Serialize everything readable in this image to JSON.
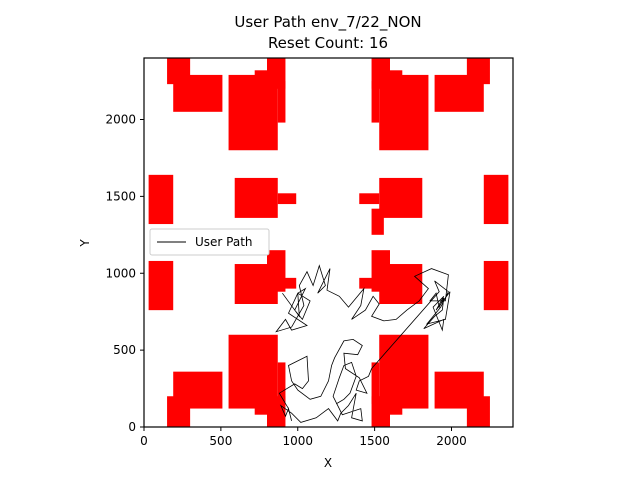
{
  "chart_data": {
    "type": "line",
    "title": "User Path env_7/22_NON",
    "subtitle": "Reset Count: 16",
    "xlabel": "X",
    "ylabel": "Y",
    "xlim": [
      0,
      2400
    ],
    "ylim": [
      0,
      2400
    ],
    "xticks": [
      0,
      500,
      1000,
      1500,
      2000
    ],
    "yticks": [
      0,
      500,
      1000,
      1500,
      2000
    ],
    "grid": false,
    "legend": {
      "placement": "center-left",
      "entries": [
        "User Path"
      ]
    },
    "colors": {
      "obstacle": "#ff0000",
      "path": "#000000"
    },
    "obstacles": [
      {
        "x0": 150,
        "y0": 2230,
        "x1": 300,
        "y1": 2400
      },
      {
        "x0": 190,
        "y0": 2050,
        "x1": 510,
        "y1": 2290
      },
      {
        "x0": 550,
        "y0": 1800,
        "x1": 870,
        "y1": 2290
      },
      {
        "x0": 720,
        "y0": 2200,
        "x1": 870,
        "y1": 2320
      },
      {
        "x0": 800,
        "y0": 2200,
        "x1": 920,
        "y1": 2400
      },
      {
        "x0": 870,
        "y0": 1980,
        "x1": 920,
        "y1": 2250
      },
      {
        "x0": 1480,
        "y0": 2200,
        "x1": 1600,
        "y1": 2400
      },
      {
        "x0": 1480,
        "y0": 1980,
        "x1": 1530,
        "y1": 2250
      },
      {
        "x0": 1530,
        "y0": 1800,
        "x1": 1850,
        "y1": 2290
      },
      {
        "x0": 1530,
        "y0": 2200,
        "x1": 1680,
        "y1": 2320
      },
      {
        "x0": 1890,
        "y0": 2050,
        "x1": 2210,
        "y1": 2290
      },
      {
        "x0": 2100,
        "y0": 2230,
        "x1": 2250,
        "y1": 2400
      },
      {
        "x0": 30,
        "y0": 1320,
        "x1": 190,
        "y1": 1640
      },
      {
        "x0": 590,
        "y0": 1360,
        "x1": 870,
        "y1": 1620
      },
      {
        "x0": 870,
        "y0": 1450,
        "x1": 990,
        "y1": 1520
      },
      {
        "x0": 1400,
        "y0": 1450,
        "x1": 1530,
        "y1": 1520
      },
      {
        "x0": 1480,
        "y0": 1250,
        "x1": 1560,
        "y1": 1420
      },
      {
        "x0": 1530,
        "y0": 1360,
        "x1": 1810,
        "y1": 1620
      },
      {
        "x0": 2210,
        "y0": 1320,
        "x1": 2370,
        "y1": 1640
      },
      {
        "x0": 30,
        "y0": 760,
        "x1": 190,
        "y1": 1080
      },
      {
        "x0": 590,
        "y0": 800,
        "x1": 870,
        "y1": 1060
      },
      {
        "x0": 800,
        "y0": 880,
        "x1": 920,
        "y1": 1150
      },
      {
        "x0": 870,
        "y0": 900,
        "x1": 990,
        "y1": 970
      },
      {
        "x0": 1400,
        "y0": 900,
        "x1": 1530,
        "y1": 970
      },
      {
        "x0": 1480,
        "y0": 880,
        "x1": 1600,
        "y1": 1150
      },
      {
        "x0": 1530,
        "y0": 800,
        "x1": 1810,
        "y1": 1060
      },
      {
        "x0": 2210,
        "y0": 760,
        "x1": 2370,
        "y1": 1080
      },
      {
        "x0": 550,
        "y0": 120,
        "x1": 870,
        "y1": 600
      },
      {
        "x0": 720,
        "y0": 80,
        "x1": 870,
        "y1": 200
      },
      {
        "x0": 800,
        "y0": 0,
        "x1": 920,
        "y1": 200
      },
      {
        "x0": 870,
        "y0": 150,
        "x1": 920,
        "y1": 420
      },
      {
        "x0": 190,
        "y0": 120,
        "x1": 510,
        "y1": 360
      },
      {
        "x0": 150,
        "y0": 0,
        "x1": 300,
        "y1": 200
      },
      {
        "x0": 1530,
        "y0": 120,
        "x1": 1850,
        "y1": 600
      },
      {
        "x0": 1530,
        "y0": 80,
        "x1": 1680,
        "y1": 200
      },
      {
        "x0": 1480,
        "y0": 0,
        "x1": 1600,
        "y1": 200
      },
      {
        "x0": 1480,
        "y0": 150,
        "x1": 1530,
        "y1": 420
      },
      {
        "x0": 1890,
        "y0": 120,
        "x1": 2210,
        "y1": 360
      },
      {
        "x0": 2100,
        "y0": 0,
        "x1": 2250,
        "y1": 200
      }
    ],
    "series": [
      {
        "name": "User Path",
        "points": [
          [
            900,
            870
          ],
          [
            1010,
            720
          ],
          [
            1000,
            870
          ],
          [
            1050,
            900
          ],
          [
            980,
            760
          ],
          [
            1030,
            700
          ],
          [
            1080,
            820
          ],
          [
            1000,
            870
          ],
          [
            940,
            740
          ],
          [
            1060,
            660
          ],
          [
            960,
            630
          ],
          [
            920,
            700
          ],
          [
            860,
            620
          ],
          [
            960,
            650
          ],
          [
            1040,
            790
          ],
          [
            1010,
            920
          ],
          [
            1060,
            1010
          ],
          [
            1100,
            920
          ],
          [
            1140,
            1050
          ],
          [
            1180,
            920
          ],
          [
            1130,
            870
          ],
          [
            1210,
            1030
          ],
          [
            1190,
            890
          ],
          [
            1270,
            850
          ],
          [
            1330,
            780
          ],
          [
            1380,
            840
          ],
          [
            1430,
            900
          ],
          [
            1410,
            790
          ],
          [
            1350,
            700
          ],
          [
            1440,
            760
          ],
          [
            1490,
            850
          ],
          [
            1530,
            800
          ],
          [
            1480,
            720
          ],
          [
            1560,
            690
          ],
          [
            1640,
            700
          ],
          [
            1710,
            760
          ],
          [
            1790,
            820
          ],
          [
            1850,
            900
          ],
          [
            1760,
            980
          ],
          [
            1870,
            1030
          ],
          [
            1980,
            990
          ],
          [
            1960,
            820
          ],
          [
            1860,
            820
          ],
          [
            1900,
            870
          ],
          [
            1920,
            780
          ],
          [
            1950,
            840
          ],
          [
            1940,
            760
          ],
          [
            1890,
            720
          ],
          [
            1820,
            640
          ],
          [
            1950,
            700
          ],
          [
            1940,
            630
          ],
          [
            1880,
            780
          ],
          [
            1950,
            850
          ],
          [
            1900,
            760
          ],
          [
            1990,
            880
          ],
          [
            1960,
            700
          ],
          [
            1840,
            670
          ],
          [
            1930,
            780
          ],
          [
            1980,
            880
          ],
          [
            1890,
            950
          ],
          [
            1920,
            880
          ],
          [
            1480,
            380
          ],
          [
            1460,
            330
          ],
          [
            1400,
            300
          ],
          [
            1380,
            240
          ],
          [
            1450,
            220
          ],
          [
            1400,
            320
          ],
          [
            1310,
            380
          ],
          [
            1300,
            480
          ],
          [
            1390,
            470
          ],
          [
            1420,
            530
          ],
          [
            1360,
            570
          ],
          [
            1300,
            560
          ],
          [
            1240,
            450
          ],
          [
            1220,
            400
          ],
          [
            1200,
            300
          ],
          [
            1150,
            200
          ],
          [
            1080,
            180
          ],
          [
            1000,
            240
          ],
          [
            960,
            300
          ],
          [
            940,
            400
          ],
          [
            1060,
            460
          ],
          [
            1070,
            300
          ],
          [
            1030,
            250
          ],
          [
            980,
            280
          ],
          [
            880,
            220
          ],
          [
            940,
            120
          ],
          [
            960,
            40
          ],
          [
            940,
            120
          ],
          [
            920,
            70
          ],
          [
            890,
            140
          ],
          [
            960,
            90
          ],
          [
            1020,
            30
          ],
          [
            1120,
            60
          ],
          [
            1200,
            120
          ],
          [
            1260,
            40
          ],
          [
            1280,
            90
          ],
          [
            1330,
            140
          ],
          [
            1380,
            220
          ],
          [
            1350,
            60
          ],
          [
            1420,
            40
          ],
          [
            1410,
            120
          ],
          [
            1290,
            80
          ],
          [
            1230,
            200
          ],
          [
            1270,
            320
          ],
          [
            1300,
            400
          ],
          [
            1350,
            420
          ],
          [
            1380,
            330
          ],
          [
            1340,
            220
          ],
          [
            1300,
            180
          ],
          [
            1250,
            150
          ]
        ]
      }
    ]
  }
}
